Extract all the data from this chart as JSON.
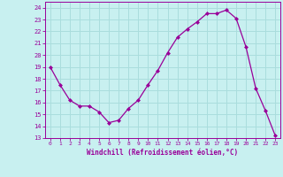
{
  "x": [
    0,
    1,
    2,
    3,
    4,
    5,
    6,
    7,
    8,
    9,
    10,
    11,
    12,
    13,
    14,
    15,
    16,
    17,
    18,
    19,
    20,
    21,
    22,
    23
  ],
  "y": [
    19,
    17.5,
    16.2,
    15.7,
    15.7,
    15.2,
    14.3,
    14.5,
    15.5,
    16.2,
    17.5,
    18.7,
    20.2,
    21.5,
    22.2,
    22.8,
    23.5,
    23.5,
    23.8,
    23.1,
    20.7,
    17.2,
    15.3,
    13.2
  ],
  "line_color": "#990099",
  "marker": "D",
  "marker_size": 2.0,
  "bg_color": "#c8f0f0",
  "grid_color": "#aadddd",
  "xlabel": "Windchill (Refroidissement éolien,°C)",
  "xlabel_color": "#990099",
  "tick_color": "#990099",
  "ylim": [
    13,
    24.5
  ],
  "xlim": [
    -0.5,
    23.5
  ],
  "yticks": [
    13,
    14,
    15,
    16,
    17,
    18,
    19,
    20,
    21,
    22,
    23,
    24
  ],
  "xticks": [
    0,
    1,
    2,
    3,
    4,
    5,
    6,
    7,
    8,
    9,
    10,
    11,
    12,
    13,
    14,
    15,
    16,
    17,
    18,
    19,
    20,
    21,
    22,
    23
  ]
}
